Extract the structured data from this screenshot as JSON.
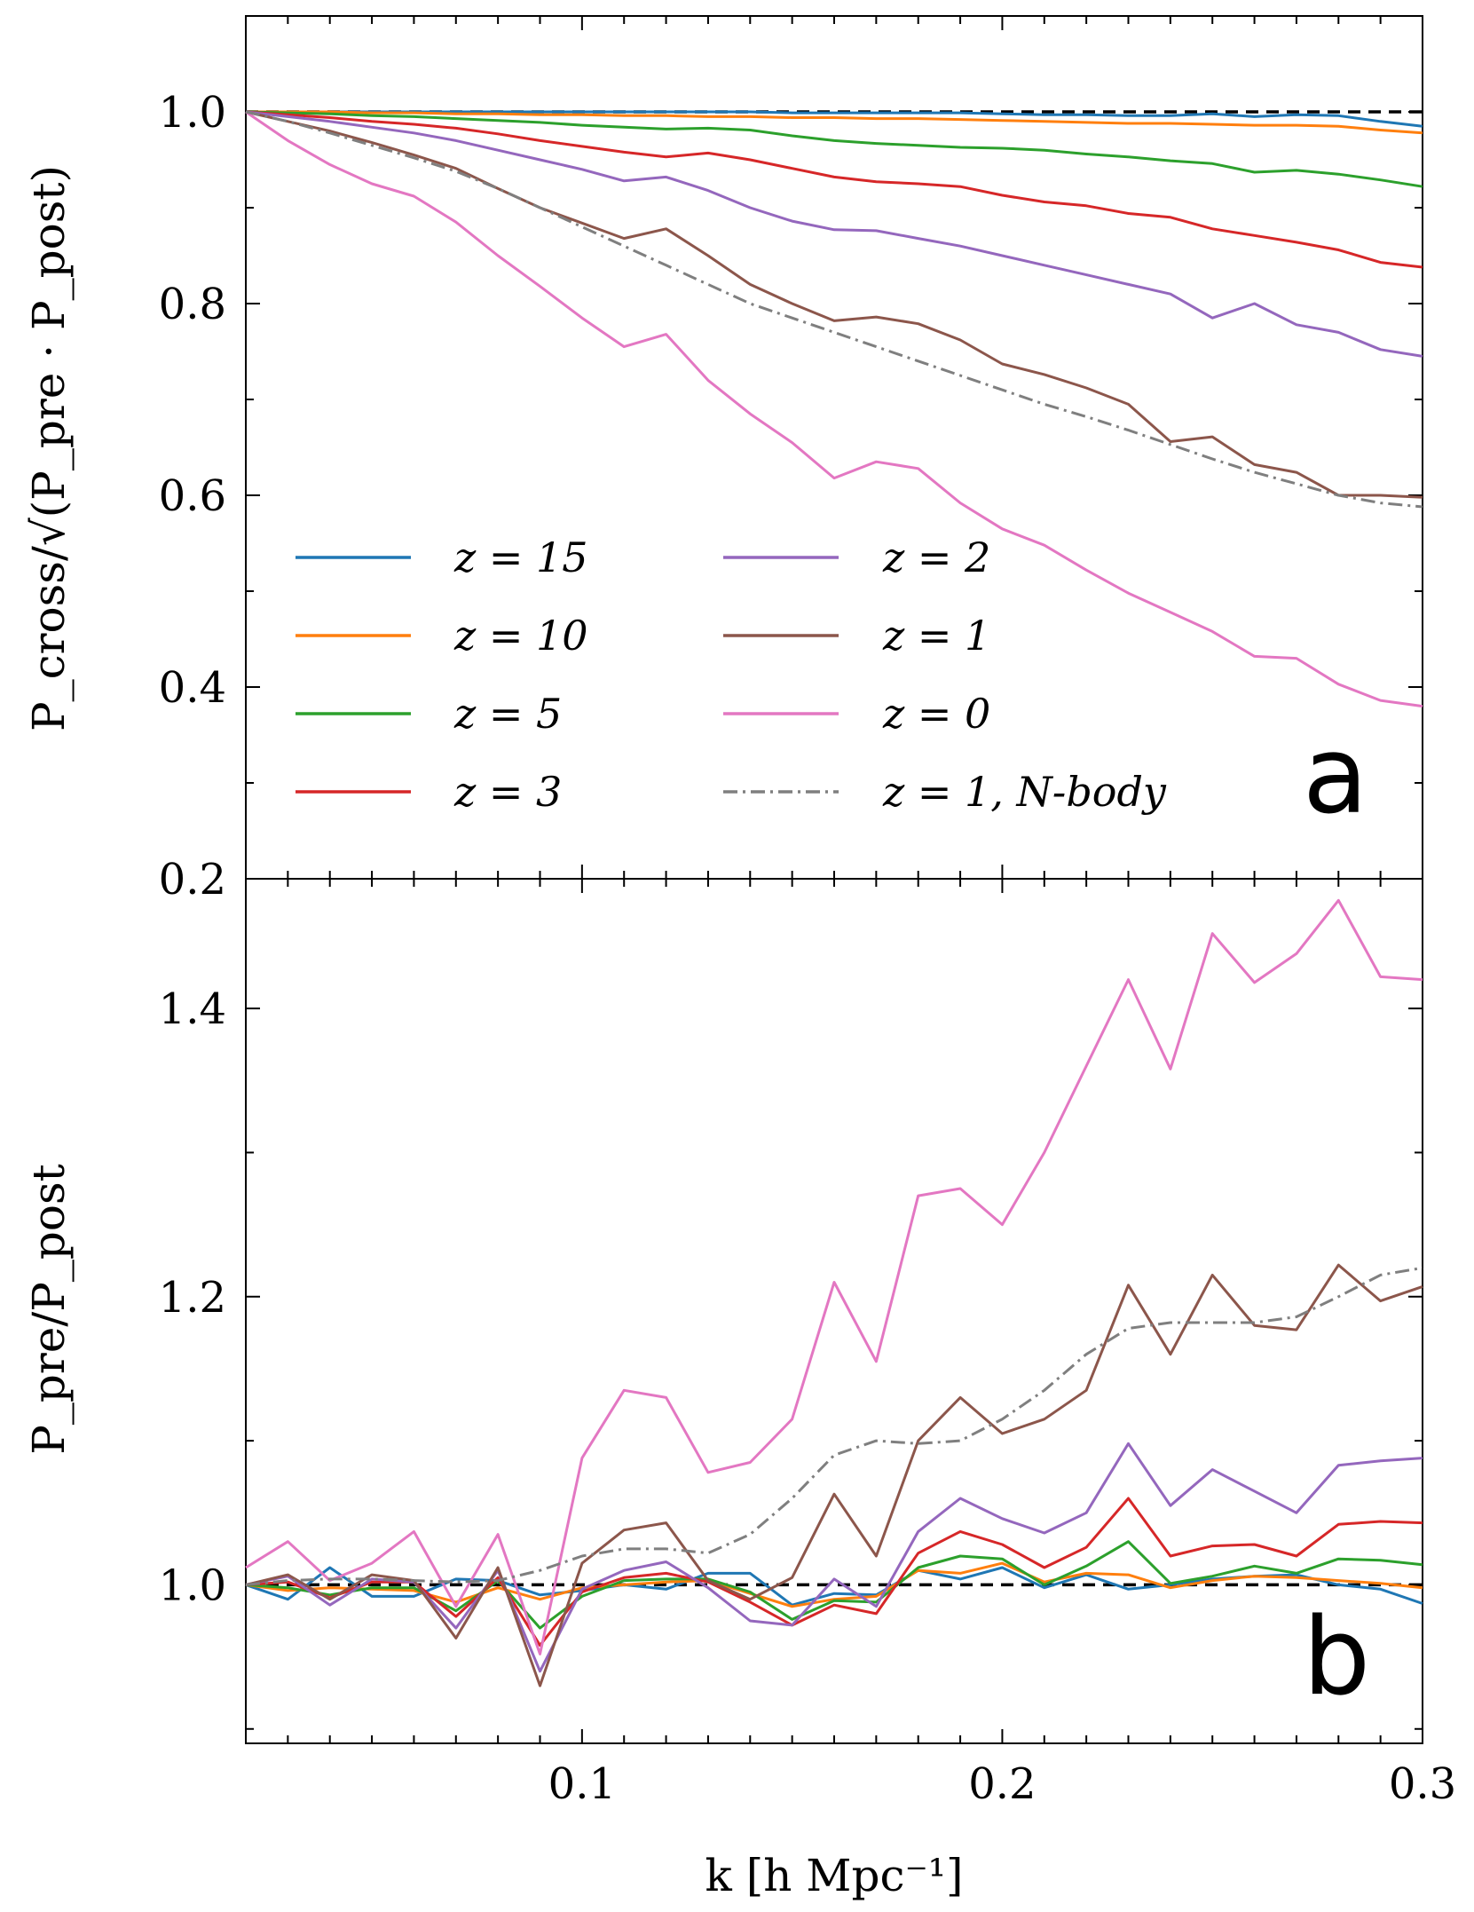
{
  "chart_data": [
    {
      "type": "line",
      "panel_label": "a",
      "ylabel": "P_cross/√(P_pre · P_post)",
      "ylim": [
        0.2,
        1.1
      ],
      "yticks": [
        0.2,
        0.4,
        0.6,
        0.8,
        1.0
      ],
      "ytick_labels": [
        "0.2",
        "0.4",
        "0.6",
        "0.8",
        "1.0"
      ],
      "xlim": [
        0.02,
        0.3
      ],
      "reference_line": 1.0,
      "legend_position": "lower-left",
      "x": [
        0.02,
        0.03,
        0.04,
        0.05,
        0.06,
        0.07,
        0.08,
        0.09,
        0.1,
        0.11,
        0.12,
        0.13,
        0.14,
        0.15,
        0.16,
        0.17,
        0.18,
        0.19,
        0.2,
        0.21,
        0.22,
        0.23,
        0.24,
        0.25,
        0.26,
        0.27,
        0.28,
        0.29,
        0.3
      ],
      "series": [
        {
          "name": "z = 15",
          "color": "#1f77b4",
          "style": "solid",
          "values": [
            1.0,
            1.0,
            1.0,
            1.0,
            1.0,
            1.0,
            1.0,
            1.0,
            1.0,
            1.0,
            1.0,
            1.0,
            1.0,
            0.999,
            0.999,
            0.999,
            0.999,
            0.999,
            0.998,
            0.997,
            0.997,
            0.996,
            0.996,
            0.998,
            0.995,
            0.997,
            0.996,
            0.99,
            0.985
          ]
        },
        {
          "name": "z = 10",
          "color": "#ff7f0e",
          "style": "solid",
          "values": [
            1.0,
            1.0,
            1.0,
            0.999,
            0.999,
            0.998,
            0.998,
            0.997,
            0.997,
            0.996,
            0.996,
            0.995,
            0.995,
            0.994,
            0.994,
            0.993,
            0.993,
            0.992,
            0.991,
            0.99,
            0.989,
            0.988,
            0.988,
            0.987,
            0.986,
            0.986,
            0.985,
            0.981,
            0.978
          ]
        },
        {
          "name": "z = 5",
          "color": "#2ca02c",
          "style": "solid",
          "values": [
            1.0,
            0.999,
            0.998,
            0.996,
            0.995,
            0.993,
            0.991,
            0.989,
            0.986,
            0.984,
            0.982,
            0.983,
            0.981,
            0.975,
            0.97,
            0.967,
            0.965,
            0.963,
            0.962,
            0.96,
            0.956,
            0.953,
            0.949,
            0.946,
            0.937,
            0.939,
            0.935,
            0.929,
            0.922
          ]
        },
        {
          "name": "z = 3",
          "color": "#d62728",
          "style": "solid",
          "values": [
            1.0,
            0.997,
            0.994,
            0.99,
            0.987,
            0.983,
            0.977,
            0.97,
            0.964,
            0.958,
            0.953,
            0.957,
            0.95,
            0.941,
            0.932,
            0.927,
            0.925,
            0.922,
            0.913,
            0.906,
            0.902,
            0.894,
            0.89,
            0.878,
            0.871,
            0.864,
            0.856,
            0.843,
            0.838
          ]
        },
        {
          "name": "z = 2",
          "color": "#9467bd",
          "style": "solid",
          "values": [
            1.0,
            0.995,
            0.99,
            0.984,
            0.978,
            0.97,
            0.96,
            0.95,
            0.94,
            0.928,
            0.932,
            0.918,
            0.9,
            0.886,
            0.877,
            0.876,
            0.868,
            0.86,
            0.85,
            0.84,
            0.83,
            0.82,
            0.81,
            0.785,
            0.8,
            0.778,
            0.77,
            0.752,
            0.745
          ]
        },
        {
          "name": "z = 1",
          "color": "#8c564b",
          "style": "solid",
          "values": [
            1.0,
            0.99,
            0.98,
            0.968,
            0.955,
            0.941,
            0.92,
            0.9,
            0.884,
            0.868,
            0.878,
            0.85,
            0.82,
            0.8,
            0.782,
            0.786,
            0.779,
            0.762,
            0.737,
            0.726,
            0.712,
            0.695,
            0.656,
            0.661,
            0.632,
            0.624,
            0.6,
            0.6,
            0.598
          ]
        },
        {
          "name": "z = 0",
          "color": "#e377c2",
          "style": "solid",
          "values": [
            1.0,
            0.97,
            0.945,
            0.925,
            0.912,
            0.885,
            0.85,
            0.818,
            0.785,
            0.755,
            0.768,
            0.72,
            0.685,
            0.655,
            0.618,
            0.635,
            0.628,
            0.592,
            0.565,
            0.548,
            0.522,
            0.498,
            0.478,
            0.458,
            0.432,
            0.43,
            0.403,
            0.386,
            0.38
          ]
        },
        {
          "name": "z = 1, N-body",
          "color": "#7f7f7f",
          "style": "dashdot",
          "values": [
            1.0,
            0.99,
            0.978,
            0.965,
            0.952,
            0.938,
            0.92,
            0.9,
            0.88,
            0.86,
            0.84,
            0.82,
            0.8,
            0.785,
            0.77,
            0.755,
            0.74,
            0.725,
            0.71,
            0.695,
            0.682,
            0.668,
            0.653,
            0.638,
            0.624,
            0.612,
            0.6,
            0.592,
            0.588
          ]
        }
      ]
    },
    {
      "type": "line",
      "panel_label": "b",
      "ylabel": "P_pre/P_post",
      "ylim": [
        0.89,
        1.49
      ],
      "yticks": [
        1.0,
        1.2,
        1.4
      ],
      "ytick_labels": [
        "1.0",
        "1.2",
        "1.4"
      ],
      "xlim": [
        0.02,
        0.3
      ],
      "xticks": [
        0.1,
        0.2,
        0.3
      ],
      "xtick_labels": [
        "0.1",
        "0.2",
        "0.3"
      ],
      "xlabel": "k [h Mpc⁻¹]",
      "reference_line": 1.0,
      "x": [
        0.02,
        0.03,
        0.04,
        0.05,
        0.06,
        0.07,
        0.08,
        0.09,
        0.1,
        0.11,
        0.12,
        0.13,
        0.14,
        0.15,
        0.16,
        0.17,
        0.18,
        0.19,
        0.2,
        0.21,
        0.22,
        0.23,
        0.24,
        0.25,
        0.26,
        0.27,
        0.28,
        0.29,
        0.3
      ],
      "series": [
        {
          "name": "z = 15",
          "color": "#1f77b4",
          "style": "solid",
          "values": [
            1.0,
            0.99,
            1.012,
            0.992,
            0.992,
            1.004,
            1.003,
            0.993,
            0.996,
            1.0,
            0.997,
            1.008,
            1.008,
            0.986,
            0.994,
            0.993,
            1.01,
            1.004,
            1.012,
            0.998,
            1.007,
            0.997,
            1.0,
            1.004,
            1.006,
            1.007,
            1.0,
            0.997,
            0.987
          ]
        },
        {
          "name": "z = 10",
          "color": "#ff7f0e",
          "style": "solid",
          "values": [
            1.0,
            0.996,
            0.998,
            0.997,
            0.996,
            0.988,
            0.998,
            0.99,
            0.998,
            1.0,
            1.002,
            1.003,
            0.994,
            0.985,
            0.99,
            0.992,
            1.01,
            1.008,
            1.015,
            1.002,
            1.008,
            1.007,
            0.998,
            1.003,
            1.006,
            1.005,
            1.003,
            1.001,
            0.998
          ]
        },
        {
          "name": "z = 5",
          "color": "#2ca02c",
          "style": "solid",
          "values": [
            1.0,
            0.998,
            0.993,
            0.998,
            0.998,
            0.982,
            1.003,
            0.97,
            0.992,
            1.003,
            1.004,
            1.004,
            0.995,
            0.976,
            0.989,
            0.988,
            1.012,
            1.02,
            1.018,
            1.0,
            1.013,
            1.03,
            1.001,
            1.006,
            1.013,
            1.008,
            1.018,
            1.017,
            1.014
          ]
        },
        {
          "name": "z = 3",
          "color": "#d62728",
          "style": "solid",
          "values": [
            1.0,
            1.002,
            0.991,
            1.002,
            1.002,
            0.978,
            1.005,
            0.958,
            0.995,
            1.005,
            1.008,
            1.002,
            0.988,
            0.972,
            0.986,
            0.98,
            1.022,
            1.037,
            1.028,
            1.012,
            1.026,
            1.06,
            1.02,
            1.027,
            1.028,
            1.02,
            1.042,
            1.044,
            1.043
          ]
        },
        {
          "name": "z = 2",
          "color": "#9467bd",
          "style": "solid",
          "values": [
            1.0,
            1.006,
            0.986,
            1.004,
            1.002,
            0.97,
            1.01,
            0.94,
            0.997,
            1.01,
            1.016,
            0.998,
            0.975,
            0.972,
            1.004,
            0.985,
            1.037,
            1.06,
            1.046,
            1.036,
            1.05,
            1.098,
            1.055,
            1.08,
            1.065,
            1.05,
            1.083,
            1.086,
            1.088
          ]
        },
        {
          "name": "z = 1",
          "color": "#8c564b",
          "style": "solid",
          "values": [
            1.0,
            1.007,
            0.99,
            1.007,
            1.003,
            0.963,
            1.012,
            0.93,
            1.015,
            1.038,
            1.043,
            1.003,
            0.99,
            1.005,
            1.063,
            1.02,
            1.1,
            1.13,
            1.105,
            1.115,
            1.135,
            1.208,
            1.16,
            1.215,
            1.18,
            1.177,
            1.222,
            1.197,
            1.207
          ]
        },
        {
          "name": "z = 0",
          "color": "#e377c2",
          "style": "solid",
          "values": [
            1.012,
            1.03,
            1.003,
            1.015,
            1.037,
            0.985,
            1.035,
            0.952,
            1.088,
            1.135,
            1.13,
            1.078,
            1.085,
            1.115,
            1.21,
            1.155,
            1.27,
            1.275,
            1.25,
            1.3,
            1.36,
            1.42,
            1.358,
            1.452,
            1.418,
            1.438,
            1.475,
            1.422,
            1.42
          ]
        },
        {
          "name": "z = 1, N-body",
          "color": "#7f7f7f",
          "style": "dashdot",
          "values": [
            1.0,
            1.003,
            1.004,
            1.004,
            1.003,
            1.002,
            1.003,
            1.01,
            1.02,
            1.025,
            1.025,
            1.022,
            1.035,
            1.06,
            1.09,
            1.1,
            1.098,
            1.1,
            1.115,
            1.135,
            1.16,
            1.178,
            1.182,
            1.182,
            1.182,
            1.186,
            1.2,
            1.215,
            1.22
          ]
        }
      ]
    }
  ]
}
